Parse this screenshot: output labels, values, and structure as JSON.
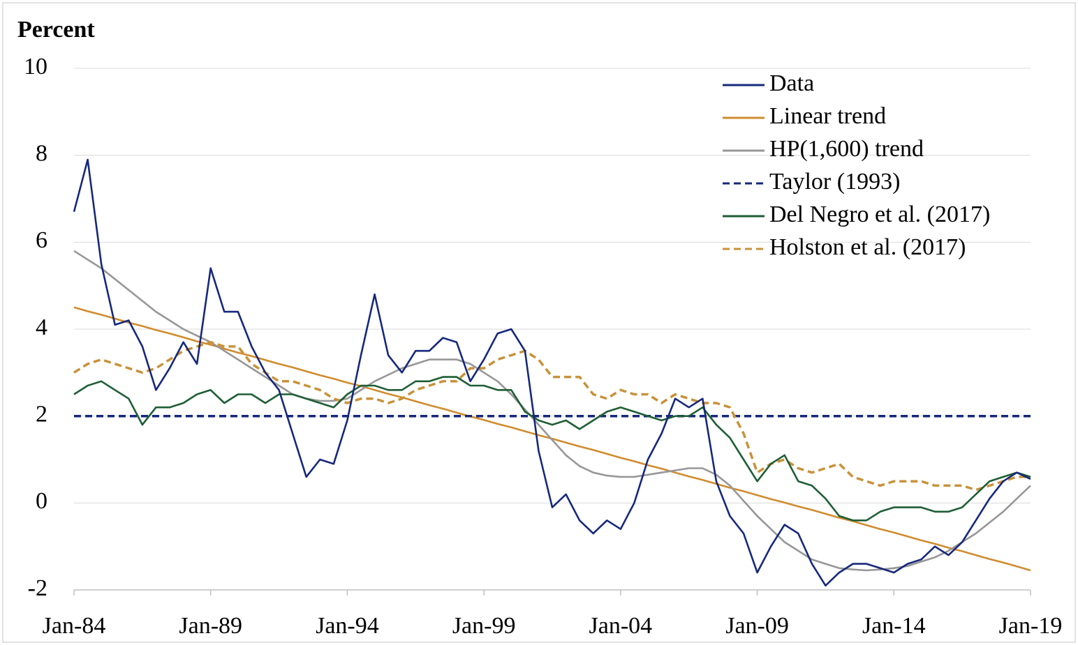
{
  "chart_data": {
    "type": "line",
    "ylabel": "Percent",
    "categories": [
      "Jan-84",
      null,
      null,
      null,
      null,
      null,
      null,
      null,
      null,
      null,
      "Jan-89",
      null,
      null,
      null,
      null,
      null,
      null,
      null,
      null,
      null,
      "Jan-94",
      null,
      null,
      null,
      null,
      null,
      null,
      null,
      null,
      null,
      "Jan-99",
      null,
      null,
      null,
      null,
      null,
      null,
      null,
      null,
      null,
      "Jan-04",
      null,
      null,
      null,
      null,
      null,
      null,
      null,
      null,
      null,
      "Jan-09",
      null,
      null,
      null,
      null,
      null,
      null,
      null,
      null,
      null,
      "Jan-14",
      null,
      null,
      null,
      null,
      null,
      null,
      null,
      null,
      null,
      "Jan-19"
    ],
    "ylim": [
      -2,
      10
    ],
    "yticks": [
      -2,
      0,
      2,
      4,
      6,
      8,
      10
    ],
    "grid": true,
    "legend": "upper right",
    "series": [
      {
        "name": "Data",
        "color": "#16287c",
        "style": "solid",
        "values": [
          6.7,
          7.9,
          5.5,
          4.1,
          4.2,
          3.6,
          2.6,
          3.1,
          3.7,
          3.2,
          5.4,
          4.4,
          4.4,
          3.6,
          3.0,
          2.6,
          1.6,
          0.6,
          1.0,
          0.9,
          1.9,
          3.4,
          4.8,
          3.4,
          3.0,
          3.5,
          3.5,
          3.8,
          3.7,
          2.8,
          3.3,
          3.9,
          4.0,
          3.5,
          1.2,
          -0.1,
          0.2,
          -0.4,
          -0.7,
          -0.4,
          -0.6,
          0.0,
          1.0,
          1.6,
          2.4,
          2.2,
          2.4,
          0.5,
          -0.3,
          -0.7,
          -1.6,
          -1.0,
          -0.5,
          -0.7,
          -1.4,
          -1.9,
          -1.6,
          -1.4,
          -1.4,
          -1.5,
          -1.6,
          -1.4,
          -1.3,
          -1.0,
          -1.2,
          -0.9,
          -0.4,
          0.1,
          0.5,
          0.7,
          0.55
        ]
      },
      {
        "name": "Linear trend",
        "color": "#d08c2e",
        "style": "solid",
        "values": [
          4.5,
          4.41,
          4.33,
          4.24,
          4.15,
          4.07,
          3.98,
          3.9,
          3.81,
          3.72,
          3.64,
          3.55,
          3.46,
          3.38,
          3.29,
          3.2,
          3.12,
          3.03,
          2.94,
          2.86,
          2.77,
          2.69,
          2.6,
          2.51,
          2.43,
          2.34,
          2.25,
          2.17,
          2.08,
          1.99,
          1.91,
          1.82,
          1.74,
          1.65,
          1.56,
          1.48,
          1.39,
          1.3,
          1.22,
          1.13,
          1.04,
          0.96,
          0.87,
          0.79,
          0.7,
          0.61,
          0.53,
          0.44,
          0.35,
          0.27,
          0.18,
          0.09,
          0.01,
          -0.08,
          -0.16,
          -0.25,
          -0.34,
          -0.42,
          -0.51,
          -0.6,
          -0.68,
          -0.77,
          -0.86,
          -0.94,
          -1.03,
          -1.11,
          -1.2,
          -1.29,
          -1.37,
          -1.46,
          -1.55
        ]
      },
      {
        "name": "HP(1,600) trend",
        "color": "#979797",
        "style": "solid",
        "values": [
          5.8,
          5.6,
          5.4,
          5.15,
          4.9,
          4.65,
          4.4,
          4.2,
          4.0,
          3.85,
          3.7,
          3.5,
          3.3,
          3.1,
          2.9,
          2.7,
          2.5,
          2.4,
          2.35,
          2.35,
          2.4,
          2.6,
          2.8,
          2.95,
          3.1,
          3.2,
          3.3,
          3.3,
          3.3,
          3.2,
          3.0,
          2.8,
          2.5,
          2.15,
          1.8,
          1.45,
          1.1,
          0.85,
          0.7,
          0.63,
          0.6,
          0.6,
          0.65,
          0.7,
          0.75,
          0.8,
          0.8,
          0.65,
          0.4,
          0.05,
          -0.3,
          -0.6,
          -0.9,
          -1.1,
          -1.3,
          -1.4,
          -1.5,
          -1.53,
          -1.55,
          -1.53,
          -1.5,
          -1.45,
          -1.35,
          -1.25,
          -1.1,
          -0.9,
          -0.7,
          -0.45,
          -0.2,
          0.1,
          0.4
        ]
      },
      {
        "name": "Taylor (1993)",
        "color": "#16287c",
        "style": "dashed",
        "values": [
          2,
          2,
          2,
          2,
          2,
          2,
          2,
          2,
          2,
          2,
          2,
          2,
          2,
          2,
          2,
          2,
          2,
          2,
          2,
          2,
          2,
          2,
          2,
          2,
          2,
          2,
          2,
          2,
          2,
          2,
          2,
          2,
          2,
          2,
          2,
          2,
          2,
          2,
          2,
          2,
          2,
          2,
          2,
          2,
          2,
          2,
          2,
          2,
          2,
          2,
          2,
          2,
          2,
          2,
          2,
          2,
          2,
          2,
          2,
          2,
          2,
          2,
          2,
          2,
          2,
          2,
          2,
          2,
          2,
          2,
          2
        ]
      },
      {
        "name": "Del Negro et al. (2017)",
        "color": "#1e5e35",
        "style": "solid",
        "values": [
          2.5,
          2.7,
          2.8,
          2.6,
          2.4,
          1.8,
          2.2,
          2.2,
          2.3,
          2.5,
          2.6,
          2.3,
          2.5,
          2.5,
          2.3,
          2.5,
          2.5,
          2.4,
          2.3,
          2.2,
          2.5,
          2.7,
          2.7,
          2.6,
          2.6,
          2.8,
          2.8,
          2.9,
          2.9,
          2.7,
          2.7,
          2.6,
          2.6,
          2.1,
          1.9,
          1.8,
          1.9,
          1.7,
          1.9,
          2.1,
          2.2,
          2.1,
          2.0,
          1.9,
          2.0,
          2.0,
          2.2,
          1.8,
          1.5,
          1.0,
          0.5,
          0.9,
          1.1,
          0.5,
          0.4,
          0.1,
          -0.3,
          -0.4,
          -0.4,
          -0.2,
          -0.1,
          -0.1,
          -0.1,
          -0.2,
          -0.2,
          -0.1,
          0.2,
          0.5,
          0.6,
          0.7,
          0.6
        ]
      },
      {
        "name": "Holston et al. (2017)",
        "color": "#c8923a",
        "style": "dashed",
        "values": [
          3.0,
          3.2,
          3.3,
          3.2,
          3.1,
          3.0,
          3.1,
          3.3,
          3.5,
          3.6,
          3.7,
          3.6,
          3.6,
          3.2,
          3.0,
          2.8,
          2.8,
          2.7,
          2.6,
          2.4,
          2.3,
          2.4,
          2.4,
          2.3,
          2.4,
          2.6,
          2.7,
          2.8,
          2.8,
          3.1,
          3.1,
          3.3,
          3.4,
          3.5,
          3.3,
          2.9,
          2.9,
          2.9,
          2.5,
          2.4,
          2.6,
          2.5,
          2.5,
          2.3,
          2.5,
          2.4,
          2.3,
          2.3,
          2.2,
          1.6,
          0.7,
          0.9,
          1.0,
          0.8,
          0.7,
          0.8,
          0.9,
          0.6,
          0.5,
          0.4,
          0.5,
          0.5,
          0.5,
          0.4,
          0.4,
          0.4,
          0.3,
          0.4,
          0.5,
          0.6,
          0.6
        ]
      }
    ]
  }
}
